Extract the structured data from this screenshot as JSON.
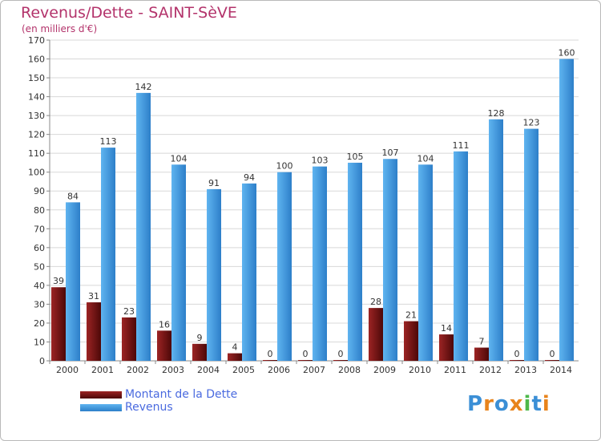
{
  "title": "Revenus/Dette - SAINT-SèVE",
  "subtitle": "(en milliers d'€)",
  "logo": {
    "text": "Proxiti",
    "colors": [
      "#3b8fd6",
      "#e8841c",
      "#3b8fd6",
      "#e8841c",
      "#4db84a",
      "#3b8fd6",
      "#e8841c"
    ]
  },
  "legend": [
    {
      "label": "Montant de la Dette",
      "color": "#7a1515"
    },
    {
      "label": "Revenus",
      "color": "#4aa3e8"
    }
  ],
  "chart_data": {
    "type": "bar",
    "categories": [
      "2000",
      "2001",
      "2002",
      "2003",
      "2004",
      "2005",
      "2006",
      "2007",
      "2008",
      "2009",
      "2010",
      "2011",
      "2012",
      "2013",
      "2014"
    ],
    "series": [
      {
        "name": "Montant de la Dette",
        "color": "#7a1515",
        "values": [
          39,
          31,
          23,
          16,
          9,
          4,
          0,
          0,
          0,
          28,
          21,
          14,
          7,
          0,
          0
        ]
      },
      {
        "name": "Revenus",
        "color": "#4aa3e8",
        "values": [
          84,
          113,
          142,
          104,
          91,
          94,
          100,
          103,
          105,
          107,
          104,
          111,
          128,
          123,
          160
        ]
      }
    ],
    "title": "Revenus/Dette - SAINT-SèVE",
    "ylim": [
      0,
      170
    ],
    "ytick_step": 10,
    "grid": true,
    "legend_position": "bottom-left"
  }
}
